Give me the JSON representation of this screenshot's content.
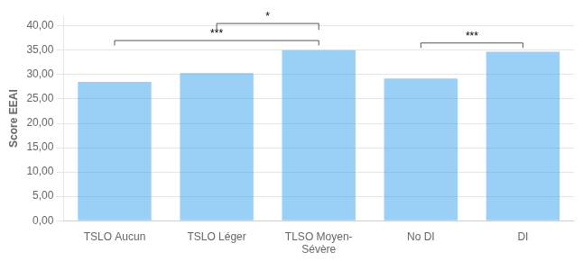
{
  "chart_data": {
    "type": "bar",
    "categories": [
      "TSLO Aucun",
      "TSLO Léger",
      "TLSO Moyen-\nSévère",
      "No DI",
      "DI"
    ],
    "values": [
      28.5,
      30.3,
      35.0,
      29.2,
      34.7
    ],
    "ylabel": "Score EEAI",
    "ylim": [
      0,
      42
    ],
    "yticks": [
      {
        "value": 0,
        "label": "0,00"
      },
      {
        "value": 5,
        "label": "5,00"
      },
      {
        "value": 10,
        "label": "10,00"
      },
      {
        "value": 15,
        "label": "15,00"
      },
      {
        "value": 20,
        "label": "20,00"
      },
      {
        "value": 25,
        "label": "25,00"
      },
      {
        "value": 30,
        "label": "30,00"
      },
      {
        "value": 35,
        "label": "35,00"
      },
      {
        "value": 40,
        "label": "40,00"
      }
    ],
    "grid": true,
    "annotations": [
      {
        "text": "***",
        "from": "TSLO Aucun",
        "to": "TLSO Moyen-\nSévère",
        "y": 37.0,
        "y_tip": 36.0
      },
      {
        "text": "*",
        "from": "TSLO Léger",
        "to": "TLSO Moyen-\nSévère",
        "y": 40.5,
        "y_tip": 39.2
      },
      {
        "text": "***",
        "from": "No DI",
        "to": "DI",
        "y": 36.5,
        "y_tip": 35.5
      }
    ]
  }
}
